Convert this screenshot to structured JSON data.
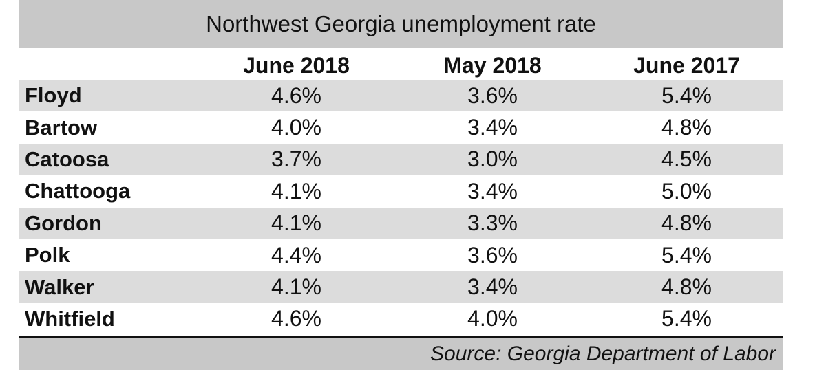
{
  "chart_data": {
    "type": "table",
    "title": "Northwest Georgia unemployment rate",
    "columns": [
      "",
      "June 2018",
      "May 2018",
      "June 2017"
    ],
    "rows": [
      {
        "county": "Floyd",
        "values": [
          "4.6%",
          "3.6%",
          "5.4%"
        ]
      },
      {
        "county": "Bartow",
        "values": [
          "4.0%",
          "3.4%",
          "4.8%"
        ]
      },
      {
        "county": "Catoosa",
        "values": [
          "3.7%",
          "3.0%",
          "4.5%"
        ]
      },
      {
        "county": "Chattooga",
        "values": [
          "4.1%",
          "3.4%",
          "5.0%"
        ]
      },
      {
        "county": "Gordon",
        "values": [
          "4.1%",
          "3.3%",
          "4.8%"
        ]
      },
      {
        "county": "Polk",
        "values": [
          "4.4%",
          "3.6%",
          "5.4%"
        ]
      },
      {
        "county": "Walker",
        "values": [
          "4.1%",
          "3.4%",
          "4.8%"
        ]
      },
      {
        "county": "Whitfield",
        "values": [
          "4.6%",
          "4.0%",
          "5.4%"
        ]
      }
    ],
    "source": "Source: Georgia Department of Labor",
    "colors": {
      "band": "#c8c8c8",
      "shaded_row": "#dcdcdc",
      "text": "#111111"
    }
  }
}
